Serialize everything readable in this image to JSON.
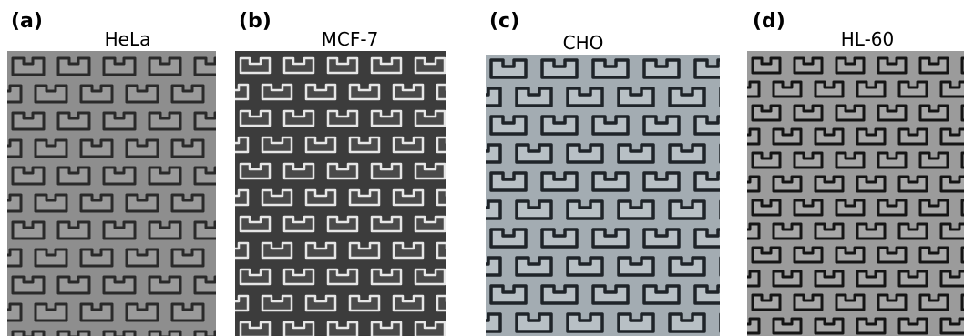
{
  "panels": [
    {
      "label": "(a)",
      "title": "HeLa"
    },
    {
      "label": "(b)",
      "title": "MCF-7"
    },
    {
      "label": "(c)",
      "title": "CHO"
    },
    {
      "label": "(d)",
      "title": "HL-60"
    }
  ]
}
